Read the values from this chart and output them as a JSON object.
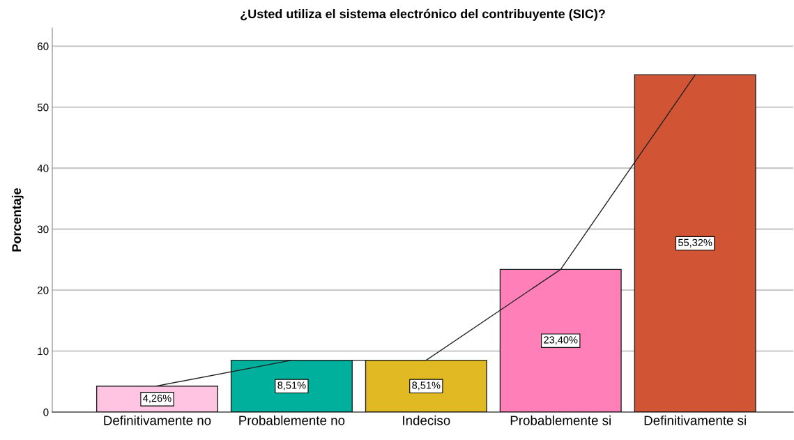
{
  "chart_data": {
    "type": "bar",
    "title": "¿Usted utiliza el sistema electrónico del contribuyente (SIC)?",
    "ylabel": "Porcentaje",
    "categories": [
      "Definitivamente no",
      "Probablemente no",
      "Indeciso",
      "Probablemente si",
      "Definitivamente si"
    ],
    "series": [
      {
        "values": [
          4.26,
          8.51,
          8.51,
          23.4,
          55.32
        ],
        "colors": [
          "#ffc4e2",
          "#00b09c",
          "#e1b922",
          "#ff80b8",
          "#d15434"
        ],
        "value_labels": [
          "4,26%",
          "8,51%",
          "8,51%",
          "23,40%",
          "55,32%"
        ]
      },
      {
        "type": "line",
        "color": "#222222",
        "values": [
          4.3,
          8.5,
          8.5,
          23.4,
          55.3
        ]
      }
    ],
    "ylim": [
      0,
      63
    ],
    "yticks": [
      0,
      10,
      20,
      30,
      40,
      50,
      60
    ],
    "grid": "y",
    "marker": "none",
    "line_style": "solid"
  }
}
